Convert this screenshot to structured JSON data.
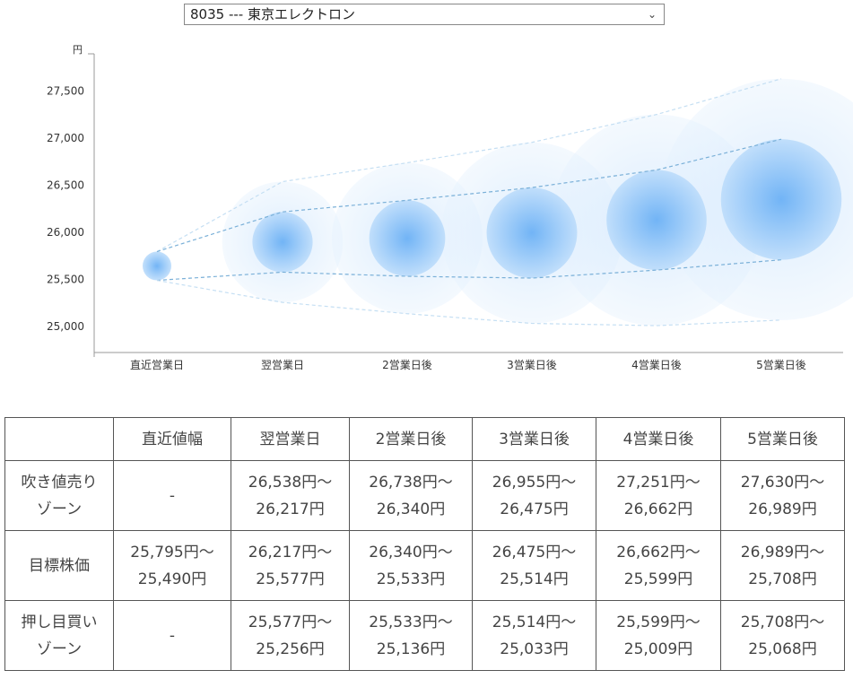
{
  "selector": {
    "value": "8035 --- 東京エレクトロン"
  },
  "chart_data": {
    "type": "scatter",
    "yunit": "円",
    "ylim": [
      24800,
      27800
    ],
    "yticks": [
      25000,
      25500,
      26000,
      26500,
      27000,
      27500
    ],
    "ytick_labels": [
      "25,000",
      "25,500",
      "26,000",
      "26,500",
      "27,000",
      "27,500"
    ],
    "categories": [
      "直近営業日",
      "翌営業日",
      "2営業日後",
      "3営業日後",
      "4営業日後",
      "5営業日後"
    ],
    "target_upper": [
      25795,
      26217,
      26340,
      26475,
      26662,
      26989
    ],
    "target_lower": [
      25490,
      25577,
      25533,
      25514,
      25599,
      25708
    ],
    "sell_upper": [
      25795,
      26538,
      26738,
      26955,
      27251,
      27630
    ],
    "buy_lower": [
      25490,
      25256,
      25136,
      25033,
      25009,
      25068
    ]
  },
  "table": {
    "header": [
      "",
      "直近値幅",
      "翌営業日",
      "2営業日後",
      "3営業日後",
      "4営業日後",
      "5営業日後"
    ],
    "rows": [
      {
        "label": [
          "吹き値売り",
          "ゾーン"
        ],
        "cells": [
          [
            "-"
          ],
          [
            "26,538円～",
            "26,217円"
          ],
          [
            "26,738円～",
            "26,340円"
          ],
          [
            "26,955円～",
            "26,475円"
          ],
          [
            "27,251円～",
            "26,662円"
          ],
          [
            "27,630円～",
            "26,989円"
          ]
        ]
      },
      {
        "label": [
          "目標株価"
        ],
        "cells": [
          [
            "25,795円～",
            "25,490円"
          ],
          [
            "26,217円～",
            "25,577円"
          ],
          [
            "26,340円～",
            "25,533円"
          ],
          [
            "26,475円～",
            "25,514円"
          ],
          [
            "26,662円～",
            "25,599円"
          ],
          [
            "26,989円～",
            "25,708円"
          ]
        ]
      },
      {
        "label": [
          "押し目買い",
          "ゾーン"
        ],
        "cells": [
          [
            "-"
          ],
          [
            "25,577円～",
            "25,256円"
          ],
          [
            "25,533円～",
            "25,136円"
          ],
          [
            "25,514円～",
            "25,033円"
          ],
          [
            "25,599円～",
            "25,009円"
          ],
          [
            "25,708円～",
            "25,068円"
          ]
        ]
      }
    ]
  }
}
